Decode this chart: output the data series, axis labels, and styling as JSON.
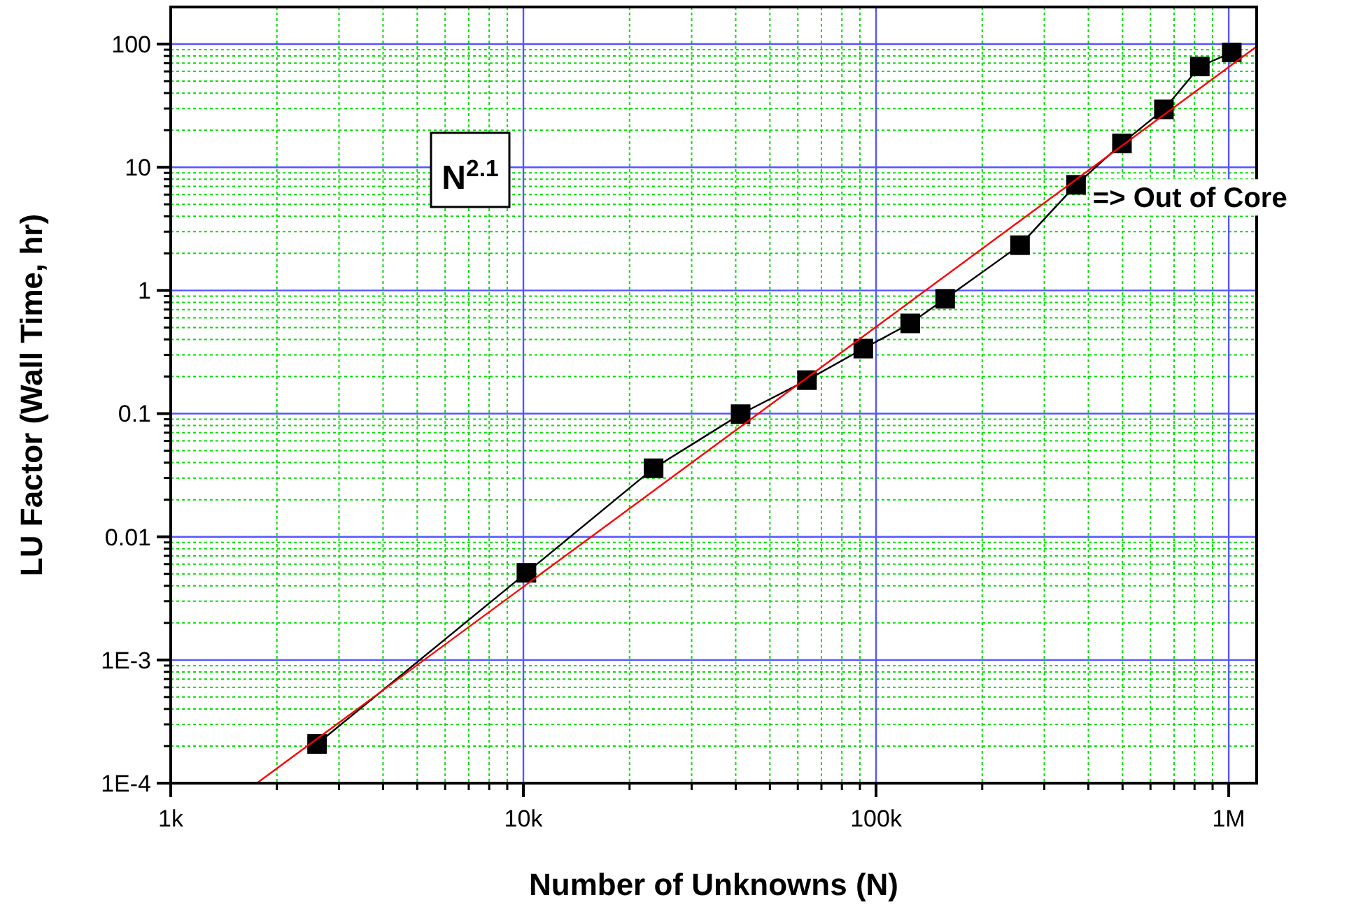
{
  "chart_data": {
    "type": "line",
    "xlabel": "Number of Unknowns (N)",
    "ylabel": "LU Factor  (Wall Time, hr)",
    "log": "xy",
    "grid": true,
    "xlim": [
      1000,
      1200000
    ],
    "xticks": [
      {
        "value": 1000,
        "label": "1k"
      },
      {
        "value": 2000,
        "label": null
      },
      {
        "value": 3000,
        "label": null
      },
      {
        "value": 4000,
        "label": null
      },
      {
        "value": 5000,
        "label": null
      },
      {
        "value": 6000,
        "label": null
      },
      {
        "value": 7000,
        "label": null
      },
      {
        "value": 8000,
        "label": null
      },
      {
        "value": 9000,
        "label": null
      },
      {
        "value": 10000,
        "label": "10k"
      },
      {
        "value": 20000,
        "label": null
      },
      {
        "value": 30000,
        "label": null
      },
      {
        "value": 40000,
        "label": null
      },
      {
        "value": 50000,
        "label": null
      },
      {
        "value": 60000,
        "label": null
      },
      {
        "value": 70000,
        "label": null
      },
      {
        "value": 80000,
        "label": null
      },
      {
        "value": 90000,
        "label": null
      },
      {
        "value": 100000,
        "label": "100k"
      },
      {
        "value": 200000,
        "label": null
      },
      {
        "value": 300000,
        "label": null
      },
      {
        "value": 400000,
        "label": null
      },
      {
        "value": 500000,
        "label": null
      },
      {
        "value": 600000,
        "label": null
      },
      {
        "value": 700000,
        "label": null
      },
      {
        "value": 800000,
        "label": null
      },
      {
        "value": 900000,
        "label": null
      },
      {
        "value": 1000000,
        "label": "1M"
      }
    ],
    "ylim": [
      0.0001,
      200
    ],
    "yticks": [
      {
        "value": 0.0001,
        "label": "1E-4"
      },
      {
        "value": 0.0002,
        "label": null
      },
      {
        "value": 0.0003,
        "label": null
      },
      {
        "value": 0.0004,
        "label": null
      },
      {
        "value": 0.0005,
        "label": null
      },
      {
        "value": 0.0006,
        "label": null
      },
      {
        "value": 0.0007,
        "label": null
      },
      {
        "value": 0.0008,
        "label": null
      },
      {
        "value": 0.0009,
        "label": null
      },
      {
        "value": 0.001,
        "label": "1E-3"
      },
      {
        "value": 0.002,
        "label": null
      },
      {
        "value": 0.003,
        "label": null
      },
      {
        "value": 0.004,
        "label": null
      },
      {
        "value": 0.005,
        "label": null
      },
      {
        "value": 0.006,
        "label": null
      },
      {
        "value": 0.007,
        "label": null
      },
      {
        "value": 0.008,
        "label": null
      },
      {
        "value": 0.009,
        "label": null
      },
      0.01,
      {
        "value": 0.02,
        "label": null
      },
      {
        "value": 0.03,
        "label": null
      },
      {
        "value": 0.04,
        "label": null
      },
      {
        "value": 0.05,
        "label": null
      },
      {
        "value": 0.06,
        "label": null
      },
      {
        "value": 0.07,
        "label": null
      },
      {
        "value": 0.08,
        "label": null
      },
      {
        "value": 0.09,
        "label": null
      },
      0.1,
      {
        "value": 0.2,
        "label": null
      },
      {
        "value": 0.3,
        "label": null
      },
      {
        "value": 0.4,
        "label": null
      },
      {
        "value": 0.5,
        "label": null
      },
      {
        "value": 0.6,
        "label": null
      },
      {
        "value": 0.7,
        "label": null
      },
      {
        "value": 0.8,
        "label": null
      },
      {
        "value": 0.9,
        "label": null
      },
      1,
      {
        "value": 2,
        "label": null
      },
      {
        "value": 3,
        "label": null
      },
      {
        "value": 4,
        "label": null
      },
      {
        "value": 5,
        "label": null
      },
      {
        "value": 6,
        "label": null
      },
      {
        "value": 7,
        "label": null
      },
      {
        "value": 8,
        "label": null
      },
      {
        "value": 9,
        "label": null
      },
      10,
      {
        "value": 20,
        "label": null
      },
      {
        "value": 30,
        "label": null
      },
      {
        "value": 40,
        "label": null
      },
      {
        "value": 50,
        "label": null
      },
      {
        "value": 60,
        "label": null
      },
      {
        "value": 70,
        "label": null
      },
      {
        "value": 80,
        "label": null
      },
      {
        "value": 90,
        "label": null
      },
      100
    ],
    "series": [
      {
        "color": "#000000",
        "marker": "square",
        "x": [
          2600,
          10200,
          23400,
          41300,
          63700,
          92000,
          125000,
          157000,
          256000,
          369000,
          498000,
          655000,
          828000,
          1020000
        ],
        "values": [
          0.000208,
          0.0051,
          0.036,
          0.099,
          0.187,
          0.337,
          0.54,
          0.855,
          2.33,
          7.2,
          15.6,
          29.5,
          65.8,
          85.5
        ]
      },
      {
        "color": "#ff0000",
        "marker": "none",
        "x": [
          1755,
          1200000
        ],
        "values": [
          0.0001,
          95.6
        ]
      }
    ],
    "annotations": [
      "N$^{2.1}$",
      {
        "text": "=> Out of Core",
        "x": 369000,
        "y": 7.2
      }
    ]
  }
}
